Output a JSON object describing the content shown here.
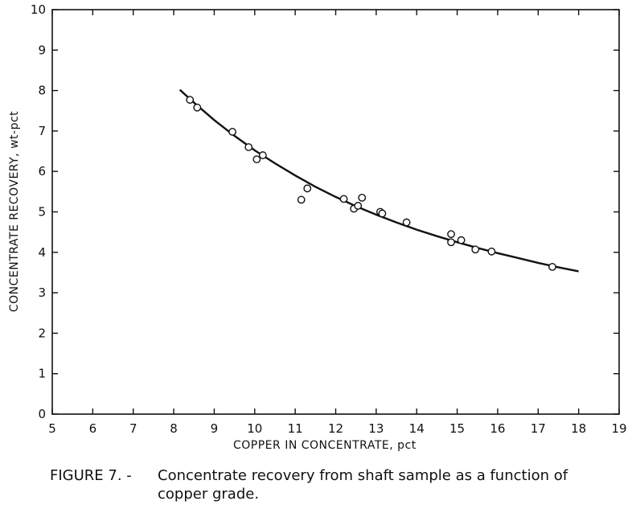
{
  "chart_data": {
    "type": "scatter",
    "xlabel": "COPPER IN CONCENTRATE, pct",
    "ylabel": "CONCENTRATE RECOVERY, wt-pct",
    "xlim": [
      5,
      19
    ],
    "ylim": [
      0,
      10
    ],
    "x_ticks": [
      5,
      6,
      7,
      8,
      9,
      10,
      11,
      12,
      13,
      14,
      15,
      16,
      17,
      18,
      19
    ],
    "y_ticks": [
      0,
      1,
      2,
      3,
      4,
      5,
      6,
      7,
      8,
      9,
      10
    ],
    "grid": false,
    "points": [
      {
        "x": 8.4,
        "y": 7.77
      },
      {
        "x": 8.58,
        "y": 7.58
      },
      {
        "x": 9.45,
        "y": 6.98
      },
      {
        "x": 9.85,
        "y": 6.6
      },
      {
        "x": 10.05,
        "y": 6.3
      },
      {
        "x": 10.2,
        "y": 6.4
      },
      {
        "x": 11.15,
        "y": 5.3
      },
      {
        "x": 11.3,
        "y": 5.58
      },
      {
        "x": 12.2,
        "y": 5.32
      },
      {
        "x": 12.45,
        "y": 5.08
      },
      {
        "x": 12.55,
        "y": 5.15
      },
      {
        "x": 12.65,
        "y": 5.35
      },
      {
        "x": 13.1,
        "y": 5.0
      },
      {
        "x": 13.15,
        "y": 4.96
      },
      {
        "x": 13.75,
        "y": 4.74
      },
      {
        "x": 14.85,
        "y": 4.45
      },
      {
        "x": 14.85,
        "y": 4.25
      },
      {
        "x": 15.1,
        "y": 4.3
      },
      {
        "x": 15.45,
        "y": 4.07
      },
      {
        "x": 15.85,
        "y": 4.02
      },
      {
        "x": 17.35,
        "y": 3.64
      }
    ],
    "fit_curve": {
      "x": [
        8.15,
        8.5,
        9.0,
        9.5,
        10.0,
        10.5,
        11.0,
        11.5,
        12.0,
        12.5,
        13.0,
        13.5,
        14.0,
        14.5,
        15.0,
        15.5,
        16.0,
        16.5,
        17.0,
        17.5,
        18.0
      ],
      "y": [
        8.02,
        7.7,
        7.27,
        6.88,
        6.52,
        6.2,
        5.9,
        5.62,
        5.37,
        5.14,
        4.93,
        4.74,
        4.56,
        4.4,
        4.25,
        4.11,
        3.98,
        3.86,
        3.74,
        3.63,
        3.53
      ]
    }
  },
  "caption": {
    "figure_label": "FIGURE 7. -",
    "line1": "Concentrate recovery from shaft sample as a function of",
    "line2": "copper grade."
  }
}
